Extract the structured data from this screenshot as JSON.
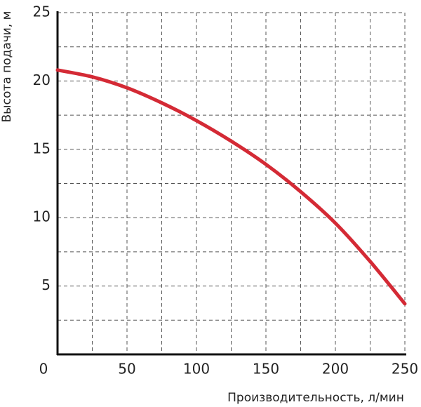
{
  "chart_data": {
    "type": "line",
    "x_label": "Производительность, л/мин",
    "y_label": "Высота подачи, м",
    "x": [
      0,
      25,
      50,
      75,
      100,
      125,
      150,
      175,
      200,
      225,
      250
    ],
    "series": [
      {
        "color": "#d42a35",
        "values": [
          20.8,
          20.3,
          19.5,
          18.4,
          17.1,
          15.6,
          13.9,
          11.9,
          9.6,
          6.8,
          3.7
        ]
      }
    ],
    "xlim": [
      0,
      250
    ],
    "ylim": [
      0,
      25
    ],
    "xticks": [
      0,
      50,
      100,
      150,
      200,
      250
    ],
    "yticks": [
      5,
      10,
      15,
      20,
      25
    ],
    "xgrid": [
      25,
      50,
      75,
      100,
      125,
      150,
      175,
      200,
      225,
      250
    ],
    "ygrid": [
      2.5,
      5,
      7.5,
      10,
      12.5,
      15,
      17.5,
      20,
      22.5,
      25
    ],
    "grid": true
  }
}
